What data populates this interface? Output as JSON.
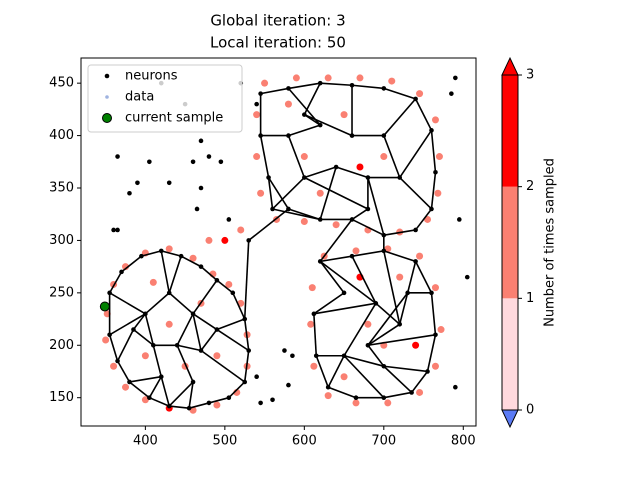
{
  "chart_data": {
    "type": "scatter",
    "title": [
      "Global iteration: 3",
      "Local iteration: 50"
    ],
    "xlim": [
      319,
      816
    ],
    "ylim": [
      123,
      474
    ],
    "xticks": [
      400,
      500,
      600,
      700,
      800
    ],
    "yticks": [
      150,
      200,
      250,
      300,
      350,
      400,
      450
    ],
    "legend": "upper left",
    "series": [
      {
        "name": "neurons",
        "color": "#000000",
        "x": [
          355,
          370,
          395,
          420,
          445,
          470,
          490,
          510,
          525,
          530,
          525,
          505,
          480,
          455,
          430,
          405,
          380,
          365,
          355,
          400,
          430,
          460,
          440,
          410,
          470,
          490,
          420,
          460,
          385,
          545,
          580,
          620,
          660,
          700,
          740,
          760,
          765,
          760,
          740,
          700,
          660,
          620,
          580,
          555,
          545,
          580,
          620,
          660,
          700,
          720,
          680,
          640,
          600,
          680,
          600,
          560,
          530,
          620,
          660,
          700,
          740,
          760,
          765,
          755,
          735,
          700,
          665,
          630,
          615,
          612,
          650,
          690,
          720,
          680,
          700,
          650,
          730,
          360,
          365,
          380,
          390,
          365,
          405,
          430,
          460,
          470,
          480,
          470,
          465,
          495,
          505,
          540,
          575,
          560,
          580,
          585,
          545,
          790,
          785,
          795,
          805,
          790,
          420,
          450,
          520,
          540
        ],
        "y": [
          250,
          270,
          285,
          290,
          285,
          275,
          262,
          250,
          225,
          195,
          165,
          150,
          145,
          140,
          142,
          150,
          165,
          185,
          210,
          230,
          250,
          230,
          200,
          200,
          195,
          215,
          170,
          165,
          215,
          440,
          445,
          450,
          448,
          445,
          435,
          405,
          365,
          330,
          310,
          305,
          320,
          320,
          330,
          360,
          400,
          400,
          410,
          400,
          400,
          360,
          360,
          370,
          360,
          330,
          420,
          330,
          300,
          280,
          285,
          290,
          280,
          250,
          210,
          175,
          155,
          150,
          150,
          160,
          190,
          230,
          250,
          240,
          220,
          200,
          180,
          190,
          250,
          310,
          380,
          345,
          355,
          310,
          375,
          355,
          375,
          395,
          380,
          350,
          330,
          375,
          320,
          170,
          195,
          148,
          162,
          190,
          145,
          455,
          440,
          320,
          265,
          160,
          450,
          430,
          450,
          430
        ]
      },
      {
        "name": "data",
        "color": "#9fb3e0",
        "x": [
          352,
          360,
          375,
          400,
          430,
          460,
          485,
          505,
          520,
          528,
          528,
          515,
          490,
          460,
          430,
          400,
          375,
          360,
          350,
          430,
          470,
          410,
          450,
          490,
          400,
          500,
          520,
          480,
          550,
          590,
          630,
          670,
          710,
          745,
          765,
          770,
          768,
          755,
          720,
          680,
          640,
          600,
          565,
          545,
          540,
          540,
          600,
          650,
          700,
          620,
          670,
          580,
          625,
          665,
          705,
          745,
          765,
          772,
          765,
          745,
          705,
          665,
          630,
          612,
          608,
          610,
          680,
          720,
          650,
          700,
          740,
          670
        ],
        "y": [
          230,
          258,
          275,
          288,
          292,
          283,
          268,
          258,
          240,
          210,
          180,
          155,
          143,
          138,
          140,
          148,
          160,
          180,
          205,
          220,
          240,
          260,
          180,
          190,
          190,
          300,
          310,
          300,
          450,
          455,
          455,
          455,
          452,
          440,
          415,
          380,
          345,
          320,
          308,
          310,
          315,
          318,
          320,
          345,
          380,
          420,
          380,
          420,
          380,
          345,
          370,
          430,
          285,
          290,
          292,
          285,
          255,
          215,
          180,
          155,
          145,
          145,
          152,
          180,
          220,
          255,
          220,
          265,
          170,
          200,
          200,
          265
        ],
        "values": [
          1,
          1,
          1,
          1,
          1,
          1,
          1,
          1,
          1,
          1,
          1,
          1,
          1,
          1,
          2,
          1,
          1,
          1,
          1,
          1,
          1,
          1,
          1,
          1,
          1,
          2,
          1,
          1,
          1,
          1,
          1,
          1,
          1,
          1,
          1,
          1,
          1,
          1,
          1,
          1,
          1,
          1,
          1,
          1,
          1,
          1,
          1,
          1,
          1,
          1,
          2,
          1,
          1,
          1,
          1,
          1,
          1,
          1,
          1,
          1,
          1,
          1,
          1,
          1,
          1,
          1,
          1,
          1,
          1,
          1,
          2,
          2
        ]
      },
      {
        "name": "current sample",
        "color": "#008000",
        "x": [
          349
        ],
        "y": [
          237
        ]
      }
    ],
    "edges": [
      [
        0,
        1
      ],
      [
        1,
        2
      ],
      [
        2,
        3
      ],
      [
        3,
        4
      ],
      [
        4,
        5
      ],
      [
        5,
        6
      ],
      [
        6,
        7
      ],
      [
        7,
        8
      ],
      [
        8,
        9
      ],
      [
        9,
        10
      ],
      [
        10,
        11
      ],
      [
        11,
        12
      ],
      [
        12,
        13
      ],
      [
        13,
        14
      ],
      [
        14,
        15
      ],
      [
        15,
        16
      ],
      [
        16,
        17
      ],
      [
        17,
        18
      ],
      [
        18,
        0
      ],
      [
        19,
        18
      ],
      [
        19,
        0
      ],
      [
        19,
        20
      ],
      [
        20,
        3
      ],
      [
        20,
        4
      ],
      [
        20,
        21
      ],
      [
        21,
        6
      ],
      [
        21,
        24
      ],
      [
        24,
        25
      ],
      [
        25,
        8
      ],
      [
        25,
        21
      ],
      [
        22,
        21
      ],
      [
        22,
        23
      ],
      [
        23,
        19
      ],
      [
        23,
        28
      ],
      [
        28,
        17
      ],
      [
        28,
        19
      ],
      [
        22,
        24
      ],
      [
        22,
        27
      ],
      [
        27,
        13
      ],
      [
        27,
        14
      ],
      [
        26,
        23
      ],
      [
        26,
        15
      ],
      [
        26,
        14
      ],
      [
        24,
        10
      ],
      [
        25,
        9
      ],
      [
        26,
        16
      ],
      [
        8,
        56
      ],
      [
        56,
        42
      ],
      [
        29,
        30
      ],
      [
        30,
        31
      ],
      [
        31,
        32
      ],
      [
        32,
        33
      ],
      [
        33,
        34
      ],
      [
        34,
        35
      ],
      [
        35,
        36
      ],
      [
        36,
        37
      ],
      [
        37,
        38
      ],
      [
        38,
        39
      ],
      [
        39,
        40
      ],
      [
        40,
        41
      ],
      [
        41,
        42
      ],
      [
        42,
        43
      ],
      [
        43,
        44
      ],
      [
        44,
        29
      ],
      [
        45,
        44
      ],
      [
        45,
        46
      ],
      [
        46,
        30
      ],
      [
        46,
        54
      ],
      [
        54,
        31
      ],
      [
        54,
        47
      ],
      [
        47,
        32
      ],
      [
        47,
        48
      ],
      [
        48,
        34
      ],
      [
        48,
        49
      ],
      [
        49,
        35
      ],
      [
        49,
        37
      ],
      [
        50,
        49
      ],
      [
        50,
        53
      ],
      [
        50,
        39
      ],
      [
        51,
        50
      ],
      [
        51,
        41
      ],
      [
        52,
        51
      ],
      [
        52,
        45
      ],
      [
        52,
        53
      ],
      [
        53,
        40
      ],
      [
        55,
        43
      ],
      [
        55,
        52
      ],
      [
        55,
        41
      ],
      [
        40,
        57
      ],
      [
        39,
        59
      ],
      [
        57,
        58
      ],
      [
        58,
        59
      ],
      [
        59,
        60
      ],
      [
        60,
        61
      ],
      [
        61,
        62
      ],
      [
        62,
        63
      ],
      [
        63,
        64
      ],
      [
        64,
        65
      ],
      [
        65,
        66
      ],
      [
        66,
        67
      ],
      [
        67,
        68
      ],
      [
        68,
        69
      ],
      [
        69,
        70
      ],
      [
        70,
        57
      ],
      [
        71,
        57
      ],
      [
        71,
        58
      ],
      [
        71,
        72
      ],
      [
        72,
        59
      ],
      [
        72,
        76
      ],
      [
        76,
        60
      ],
      [
        76,
        61
      ],
      [
        76,
        73
      ],
      [
        73,
        62
      ],
      [
        73,
        72
      ],
      [
        74,
        73
      ],
      [
        74,
        63
      ],
      [
        74,
        64
      ],
      [
        75,
        74
      ],
      [
        75,
        65
      ],
      [
        75,
        67
      ],
      [
        75,
        71
      ],
      [
        71,
        69
      ],
      [
        75,
        68
      ]
    ],
    "colorbar": {
      "label": "Number of times sampled",
      "boundaries": [
        0,
        1,
        2,
        3
      ],
      "colors": [
        "#ffd9de",
        "#fa8072",
        "#ff0000"
      ],
      "under": "#5b7bf5",
      "over": "#ff0000",
      "ticks": [
        0,
        1,
        2,
        3
      ]
    }
  }
}
